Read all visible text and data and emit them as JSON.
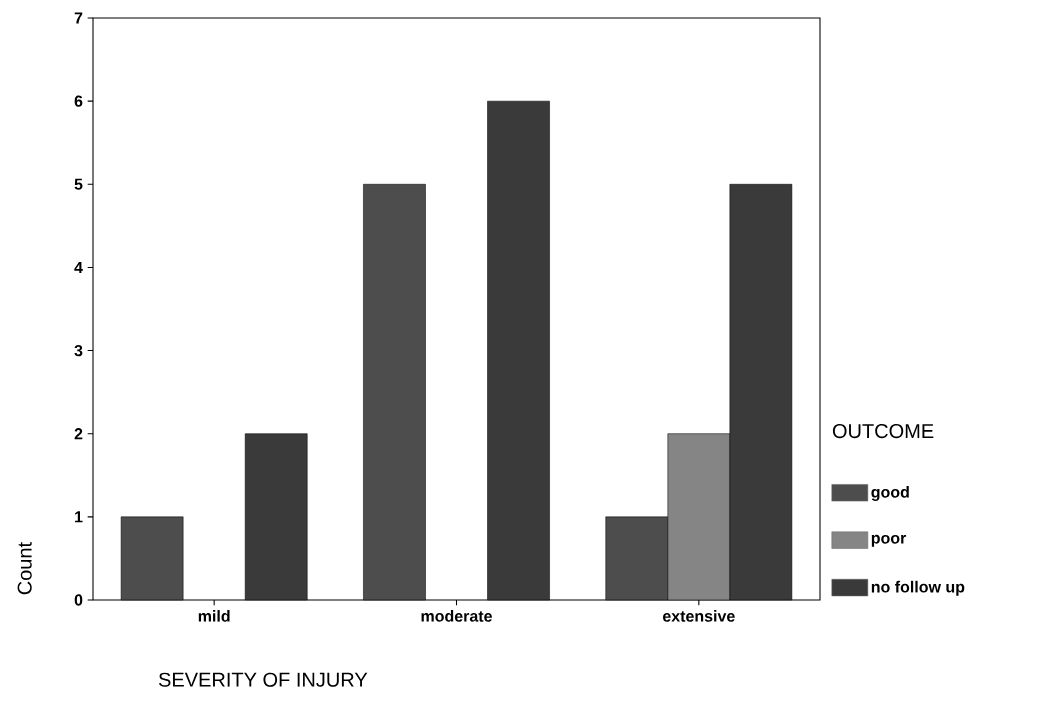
{
  "chart_data": {
    "type": "bar",
    "xlabel": "SEVERITY OF INJURY",
    "ylabel": "Count",
    "legend_title": "OUTCOME",
    "categories": [
      "mild",
      "moderate",
      "extensive"
    ],
    "series": [
      {
        "name": "good",
        "color": "#4d4d4d",
        "values": [
          1,
          5,
          1
        ]
      },
      {
        "name": "poor",
        "color": "#858585",
        "values": [
          null,
          null,
          2
        ]
      },
      {
        "name": "no follow up",
        "color": "#3a3a3a",
        "values": [
          2,
          6,
          5
        ]
      }
    ],
    "ylim": [
      0,
      7
    ],
    "yticks": [
      0,
      1,
      2,
      3,
      4,
      5,
      6,
      7
    ],
    "legend": "right",
    "grid": false
  }
}
